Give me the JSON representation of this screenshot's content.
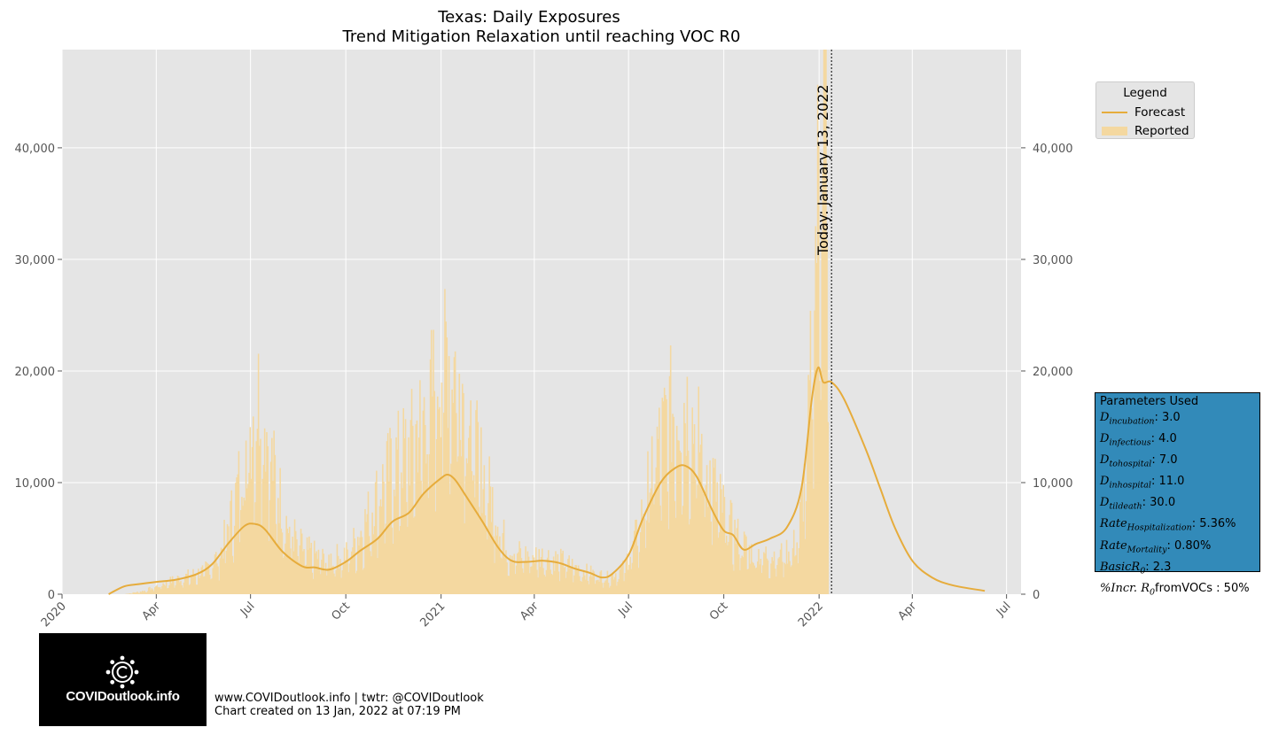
{
  "chart_data": {
    "type": "bar",
    "title": "Texas: Daily Exposures",
    "subtitle": "Trend Mitigation Relaxation until reaching VOC R0",
    "x_start": "2020-01-01",
    "x_end": "2022-07-15",
    "ylim": [
      0,
      48800
    ],
    "y_ticks": [
      0,
      10000,
      20000,
      30000,
      40000
    ],
    "y_tick_labels": [
      "0",
      "10,000",
      "20,000",
      "30,000",
      "40,000"
    ],
    "x_ticks": [
      "2020-01-01",
      "2020-04-01",
      "2020-07-01",
      "2020-10-01",
      "2021-01-01",
      "2021-04-01",
      "2021-07-01",
      "2021-10-01",
      "2022-01-01",
      "2022-04-01",
      "2022-07-01"
    ],
    "x_tick_labels": [
      "2020",
      "Apr",
      "Jul",
      "Oct",
      "2021",
      "Apr",
      "Jul",
      "Oct",
      "2022",
      "Apr",
      "Jul"
    ],
    "grid": true,
    "today": {
      "date": "2022-01-13",
      "label": "Today: January 13, 2022"
    },
    "series": [
      {
        "name": "Forecast",
        "type": "line",
        "color": "#e6ac3c",
        "points": [
          [
            "2020-02-15",
            0
          ],
          [
            "2020-03-01",
            700
          ],
          [
            "2020-03-15",
            900
          ],
          [
            "2020-04-01",
            1100
          ],
          [
            "2020-04-20",
            1300
          ],
          [
            "2020-05-10",
            1800
          ],
          [
            "2020-05-25",
            2700
          ],
          [
            "2020-06-10",
            4600
          ],
          [
            "2020-06-25",
            6100
          ],
          [
            "2020-07-05",
            6300
          ],
          [
            "2020-07-15",
            5800
          ],
          [
            "2020-08-01",
            3800
          ],
          [
            "2020-08-20",
            2500
          ],
          [
            "2020-09-01",
            2400
          ],
          [
            "2020-09-15",
            2200
          ],
          [
            "2020-10-01",
            2900
          ],
          [
            "2020-10-15",
            3900
          ],
          [
            "2020-11-01",
            5000
          ],
          [
            "2020-11-15",
            6500
          ],
          [
            "2020-12-01",
            7300
          ],
          [
            "2020-12-15",
            9000
          ],
          [
            "2021-01-01",
            10400
          ],
          [
            "2021-01-08",
            10700
          ],
          [
            "2021-01-15",
            10200
          ],
          [
            "2021-01-25",
            8800
          ],
          [
            "2021-02-10",
            6500
          ],
          [
            "2021-02-25",
            4200
          ],
          [
            "2021-03-10",
            3000
          ],
          [
            "2021-03-25",
            2900
          ],
          [
            "2021-04-10",
            3000
          ],
          [
            "2021-04-25",
            2800
          ],
          [
            "2021-05-10",
            2300
          ],
          [
            "2021-05-25",
            1900
          ],
          [
            "2021-06-05",
            1500
          ],
          [
            "2021-06-15",
            1800
          ],
          [
            "2021-07-01",
            3500
          ],
          [
            "2021-07-15",
            6800
          ],
          [
            "2021-08-01",
            10000
          ],
          [
            "2021-08-15",
            11300
          ],
          [
            "2021-08-25",
            11500
          ],
          [
            "2021-09-05",
            10500
          ],
          [
            "2021-09-20",
            7500
          ],
          [
            "2021-10-01",
            5700
          ],
          [
            "2021-10-10",
            5300
          ],
          [
            "2021-10-20",
            4000
          ],
          [
            "2021-11-01",
            4500
          ],
          [
            "2021-11-15",
            5000
          ],
          [
            "2021-12-01",
            6000
          ],
          [
            "2021-12-15",
            9500
          ],
          [
            "2021-12-25",
            17500
          ],
          [
            "2021-12-31",
            20300
          ],
          [
            "2022-01-05",
            19000
          ],
          [
            "2022-01-13",
            19000
          ],
          [
            "2022-01-25",
            17500
          ],
          [
            "2022-02-15",
            13000
          ],
          [
            "2022-03-01",
            9500
          ],
          [
            "2022-03-15",
            6000
          ],
          [
            "2022-04-01",
            3000
          ],
          [
            "2022-04-20",
            1500
          ],
          [
            "2022-05-10",
            800
          ],
          [
            "2022-06-10",
            300
          ]
        ]
      },
      {
        "name": "Reported",
        "type": "bar",
        "color": "#f4d8a0",
        "envelope": [
          [
            "2020-03-01",
            0
          ],
          [
            "2020-03-20",
            300
          ],
          [
            "2020-04-15",
            1200
          ],
          [
            "2020-05-15",
            2000
          ],
          [
            "2020-06-01",
            3500
          ],
          [
            "2020-06-15",
            8000
          ],
          [
            "2020-06-28",
            14000
          ],
          [
            "2020-07-10",
            18000
          ],
          [
            "2020-07-20",
            12000
          ],
          [
            "2020-08-05",
            6000
          ],
          [
            "2020-08-20",
            4000
          ],
          [
            "2020-09-10",
            3000
          ],
          [
            "2020-10-01",
            3500
          ],
          [
            "2020-10-15",
            5500
          ],
          [
            "2020-11-01",
            9000
          ],
          [
            "2020-11-15",
            11500
          ],
          [
            "2020-12-01",
            13000
          ],
          [
            "2020-12-20",
            17000
          ],
          [
            "2021-01-05",
            22000
          ],
          [
            "2021-01-20",
            19000
          ],
          [
            "2021-02-05",
            12000
          ],
          [
            "2021-02-20",
            8000
          ],
          [
            "2021-03-05",
            4000
          ],
          [
            "2021-03-20",
            3500
          ],
          [
            "2021-04-15",
            3300
          ],
          [
            "2021-05-01",
            2800
          ],
          [
            "2021-05-20",
            2000
          ],
          [
            "2021-06-10",
            1500
          ],
          [
            "2021-06-25",
            2200
          ],
          [
            "2021-07-10",
            5500
          ],
          [
            "2021-07-25",
            12000
          ],
          [
            "2021-08-10",
            16000
          ],
          [
            "2021-08-25",
            17000
          ],
          [
            "2021-09-10",
            12500
          ],
          [
            "2021-09-25",
            8500
          ],
          [
            "2021-10-10",
            5500
          ],
          [
            "2021-10-25",
            3800
          ],
          [
            "2021-11-10",
            3500
          ],
          [
            "2021-11-25",
            3500
          ],
          [
            "2021-12-10",
            4500
          ],
          [
            "2021-12-20",
            12000
          ],
          [
            "2021-12-27",
            28000
          ],
          [
            "2022-01-01",
            40000
          ],
          [
            "2022-01-05",
            45000
          ],
          [
            "2022-01-08",
            48000
          ],
          [
            "2022-01-10",
            0
          ]
        ]
      }
    ]
  },
  "legend": {
    "title": "Legend",
    "items": [
      "Forecast",
      "Reported"
    ]
  },
  "parameters": {
    "title": "Parameters Used",
    "rows": [
      {
        "sym": "D",
        "sub": "incubation",
        "value": ": 3.0"
      },
      {
        "sym": "D",
        "sub": "infectious",
        "value": ": 4.0"
      },
      {
        "sym": "D",
        "sub": "tohospital",
        "value": ": 7.0"
      },
      {
        "sym": "D",
        "sub": "inhospital",
        "value": ": 11.0"
      },
      {
        "sym": "D",
        "sub": "tildeath",
        "value": ": 30.0"
      },
      {
        "sym": "Rate",
        "sub": "Hospitalization",
        "value": ": 5.36%"
      },
      {
        "sym": "Rate",
        "sub": "Mortality",
        "value": ": 0.80%"
      },
      {
        "sym": "BasicR",
        "sub": "0",
        "value": ": 2.3"
      },
      {
        "sym": "%Incr. R",
        "sub": "0",
        "value": "fromVOCs : 50%"
      }
    ]
  },
  "logo": {
    "text": "COVIDoutlook.info"
  },
  "footer": {
    "line1": "www.COVIDoutlook.info | twtr: @COVIDoutlook",
    "line2": "Chart created on 13 Jan, 2022 at 07:19 PM"
  }
}
